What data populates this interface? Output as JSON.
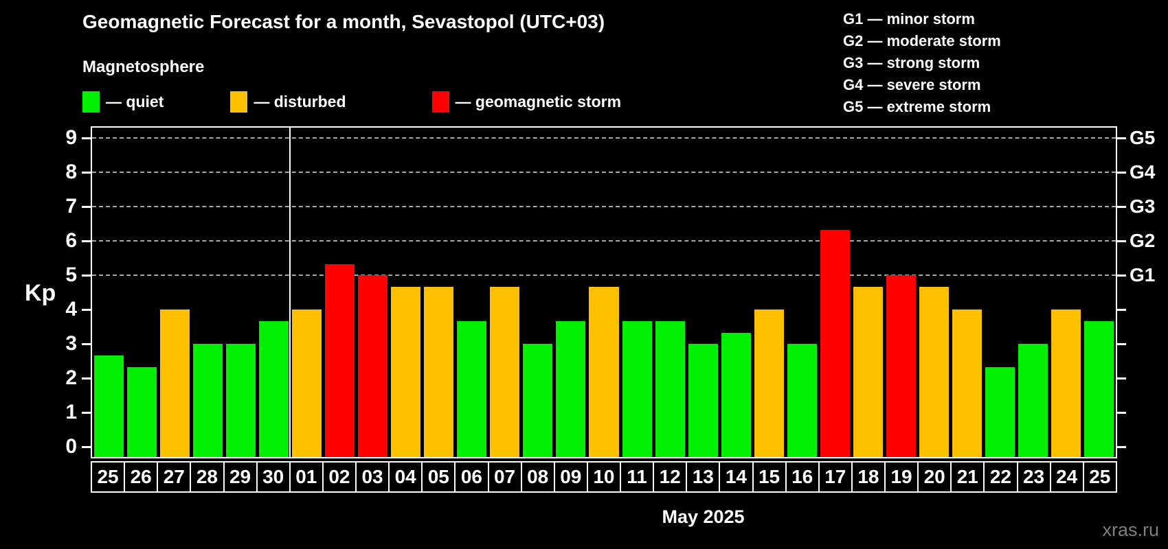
{
  "title": "Geomagnetic Forecast for a month, Sevastopol (UTC+03)",
  "subtitle": "Magnetosphere",
  "legend": {
    "items": [
      {
        "status": "quiet",
        "label": "— quiet"
      },
      {
        "status": "disturbed",
        "label": "— disturbed"
      },
      {
        "status": "storm",
        "label": "— geomagnetic storm"
      }
    ]
  },
  "g_scale_legend": [
    "G1 — minor storm",
    "G2 — moderate storm",
    "G3 — strong storm",
    "G4 — severe storm",
    "G5 — extreme storm"
  ],
  "watermark": "xras.ru",
  "chart_data": {
    "type": "bar",
    "ylabel": "Kp",
    "xlabel": "May 2025",
    "ylim": [
      0,
      9.3
    ],
    "yticks": [
      0,
      1,
      2,
      3,
      4,
      5,
      6,
      7,
      8,
      9
    ],
    "gridlines_at_kp": [
      5,
      6,
      7,
      8,
      9
    ],
    "right_axis_labels": [
      {
        "label": "G1",
        "kp": 5
      },
      {
        "label": "G2",
        "kp": 6
      },
      {
        "label": "G3",
        "kp": 7
      },
      {
        "label": "G4",
        "kp": 8
      },
      {
        "label": "G5",
        "kp": 9
      }
    ],
    "colors": {
      "quiet": "#00ee00",
      "disturbed": "#ffc000",
      "storm": "#ff0000"
    },
    "separator_after_index": 5,
    "days": [
      {
        "label": "25",
        "kp": 2.67,
        "status": "quiet"
      },
      {
        "label": "26",
        "kp": 2.33,
        "status": "quiet"
      },
      {
        "label": "27",
        "kp": 4.0,
        "status": "disturbed"
      },
      {
        "label": "28",
        "kp": 3.0,
        "status": "quiet"
      },
      {
        "label": "29",
        "kp": 3.0,
        "status": "quiet"
      },
      {
        "label": "30",
        "kp": 3.67,
        "status": "quiet"
      },
      {
        "label": "01",
        "kp": 4.0,
        "status": "disturbed"
      },
      {
        "label": "02",
        "kp": 5.33,
        "status": "storm"
      },
      {
        "label": "03",
        "kp": 5.0,
        "status": "storm"
      },
      {
        "label": "04",
        "kp": 4.67,
        "status": "disturbed"
      },
      {
        "label": "05",
        "kp": 4.67,
        "status": "disturbed"
      },
      {
        "label": "06",
        "kp": 3.67,
        "status": "quiet"
      },
      {
        "label": "07",
        "kp": 4.67,
        "status": "disturbed"
      },
      {
        "label": "08",
        "kp": 3.0,
        "status": "quiet"
      },
      {
        "label": "09",
        "kp": 3.67,
        "status": "quiet"
      },
      {
        "label": "10",
        "kp": 4.67,
        "status": "disturbed"
      },
      {
        "label": "11",
        "kp": 3.67,
        "status": "quiet"
      },
      {
        "label": "12",
        "kp": 3.67,
        "status": "quiet"
      },
      {
        "label": "13",
        "kp": 3.0,
        "status": "quiet"
      },
      {
        "label": "14",
        "kp": 3.33,
        "status": "quiet"
      },
      {
        "label": "15",
        "kp": 4.0,
        "status": "disturbed"
      },
      {
        "label": "16",
        "kp": 3.0,
        "status": "quiet"
      },
      {
        "label": "17",
        "kp": 6.33,
        "status": "storm"
      },
      {
        "label": "18",
        "kp": 4.67,
        "status": "disturbed"
      },
      {
        "label": "19",
        "kp": 5.0,
        "status": "storm"
      },
      {
        "label": "20",
        "kp": 4.67,
        "status": "disturbed"
      },
      {
        "label": "21",
        "kp": 4.0,
        "status": "disturbed"
      },
      {
        "label": "22",
        "kp": 2.33,
        "status": "quiet"
      },
      {
        "label": "23",
        "kp": 3.0,
        "status": "quiet"
      },
      {
        "label": "24",
        "kp": 4.0,
        "status": "disturbed"
      },
      {
        "label": "25",
        "kp": 3.67,
        "status": "quiet"
      }
    ]
  }
}
